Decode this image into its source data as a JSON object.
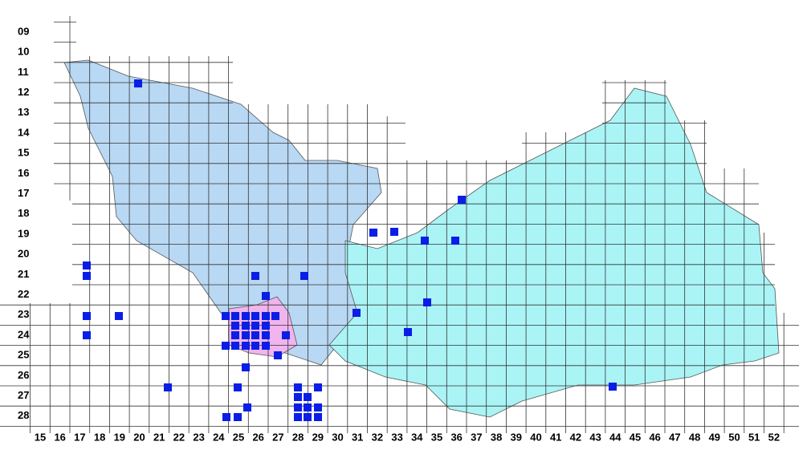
{
  "row_labels": [
    "09",
    "10",
    "11",
    "12",
    "13",
    "14",
    "15",
    "16",
    "17",
    "18",
    "19",
    "20",
    "21",
    "22",
    "23",
    "24",
    "25",
    "26",
    "27",
    "28"
  ],
  "column_labels": [
    "15",
    "16",
    "17",
    "18",
    "19",
    "20",
    "21",
    "22",
    "23",
    "24",
    "25",
    "26",
    "27",
    "28",
    "29",
    "30",
    "31",
    "32",
    "33",
    "34",
    "35",
    "36",
    "37",
    "38",
    "39",
    "40",
    "41",
    "42",
    "43",
    "44",
    "45",
    "46",
    "47",
    "48",
    "49",
    "50",
    "51",
    "52"
  ]
}
